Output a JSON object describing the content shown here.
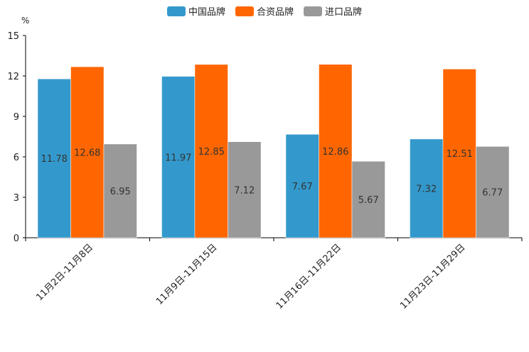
{
  "chart_data": {
    "type": "bar",
    "title": "",
    "xlabel": "",
    "ylabel": "",
    "unit": "%",
    "ylim": [
      0,
      15
    ],
    "yticks": [
      0,
      3,
      6,
      9,
      12,
      15
    ],
    "grid": false,
    "legend_position": "top-center",
    "categories": [
      "11月2日-11月8日",
      "11月9日-11月15日",
      "11月16日-11月22日",
      "11月23日-11月29日"
    ],
    "series": [
      {
        "name": "中国品牌",
        "color": "#3399cc",
        "values": [
          11.78,
          11.97,
          7.67,
          7.32
        ]
      },
      {
        "name": "合资品牌",
        "color": "#ff6600",
        "values": [
          12.68,
          12.85,
          12.86,
          12.51
        ]
      },
      {
        "name": "进口品牌",
        "color": "#999999",
        "values": [
          6.95,
          7.12,
          5.67,
          6.77
        ]
      }
    ]
  }
}
